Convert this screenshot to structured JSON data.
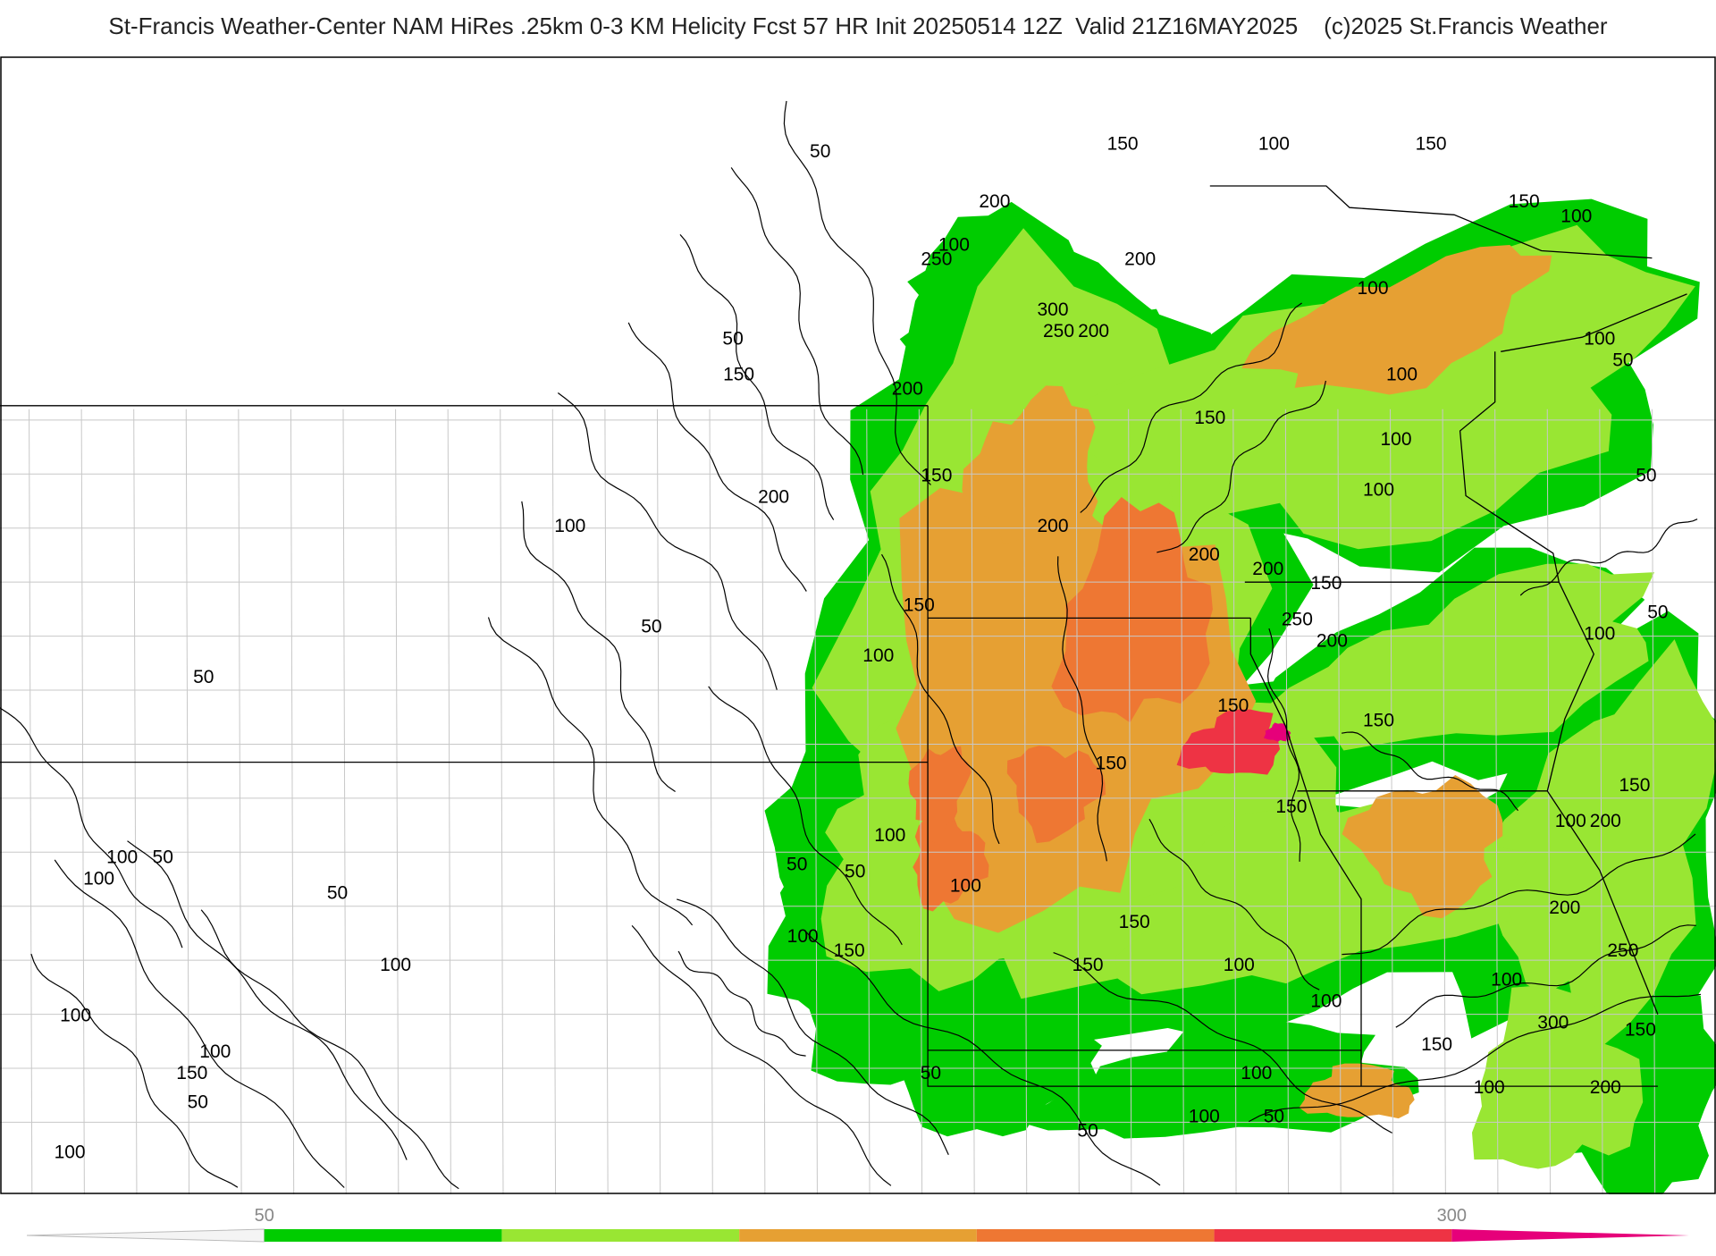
{
  "title": "St-Francis Weather-Center NAM HiRes .25km 0-3 KM Helicity Fcst 57 HR Init 20250514 12Z  Valid 21Z16MAY2025    (c)2025 St.Francis Weather",
  "colors": {
    "background": "#ffffff",
    "contour_line": "#000000",
    "state_border": "#000000",
    "county_border": "#c8c8c8",
    "scale": [
      "#ffffff",
      "#00cc00",
      "#99e633",
      "#e6a033",
      "#ee7733",
      "#ee3344",
      "#e6007a"
    ]
  },
  "legend": {
    "ticks": [
      {
        "label": "50",
        "value": 50
      },
      {
        "label": "300",
        "value": 300
      }
    ],
    "bins": [
      0,
      50,
      100,
      150,
      200,
      250,
      300,
      350
    ]
  },
  "contour_labels": [
    {
      "text": "50",
      "lon": -103.9,
      "lat": 49.4
    },
    {
      "text": "100",
      "lon": -96.1,
      "lat": 49.5
    },
    {
      "text": "150",
      "lon": -98.7,
      "lat": 49.5
    },
    {
      "text": "200",
      "lon": -100.9,
      "lat": 48.7
    },
    {
      "text": "150",
      "lon": -93.4,
      "lat": 49.5
    },
    {
      "text": "100",
      "lon": -101.6,
      "lat": 48.1
    },
    {
      "text": "250",
      "lon": -101.9,
      "lat": 47.9
    },
    {
      "text": "200",
      "lon": -98.4,
      "lat": 47.9
    },
    {
      "text": "300",
      "lon": -99.9,
      "lat": 47.2
    },
    {
      "text": "250",
      "lon": -99.8,
      "lat": 46.9
    },
    {
      "text": "200",
      "lon": -99.2,
      "lat": 46.9
    },
    {
      "text": "150",
      "lon": -91.8,
      "lat": 48.7
    },
    {
      "text": "100",
      "lon": -90.9,
      "lat": 48.5
    },
    {
      "text": "100",
      "lon": -94.4,
      "lat": 47.5
    },
    {
      "text": "50",
      "lon": -105.4,
      "lat": 46.8
    },
    {
      "text": "150",
      "lon": -105.3,
      "lat": 46.3
    },
    {
      "text": "200",
      "lon": -102.4,
      "lat": 46.1
    },
    {
      "text": "100",
      "lon": -90.5,
      "lat": 46.8
    },
    {
      "text": "50",
      "lon": -90.1,
      "lat": 46.5
    },
    {
      "text": "100",
      "lon": -93.9,
      "lat": 46.3
    },
    {
      "text": "150",
      "lon": -97.2,
      "lat": 45.7
    },
    {
      "text": "100",
      "lon": -94.0,
      "lat": 45.4
    },
    {
      "text": "150",
      "lon": -101.9,
      "lat": 44.9
    },
    {
      "text": "200",
      "lon": -104.7,
      "lat": 44.6
    },
    {
      "text": "100",
      "lon": -94.3,
      "lat": 44.7
    },
    {
      "text": "50",
      "lon": -89.7,
      "lat": 44.9
    },
    {
      "text": "100",
      "lon": -108.2,
      "lat": 44.2
    },
    {
      "text": "200",
      "lon": -99.9,
      "lat": 44.2
    },
    {
      "text": "200",
      "lon": -97.3,
      "lat": 43.8
    },
    {
      "text": "200",
      "lon": -96.2,
      "lat": 43.6
    },
    {
      "text": "150",
      "lon": -95.2,
      "lat": 43.4
    },
    {
      "text": "150",
      "lon": -102.2,
      "lat": 43.1
    },
    {
      "text": "50",
      "lon": -89.5,
      "lat": 43.0
    },
    {
      "text": "250",
      "lon": -95.7,
      "lat": 42.9
    },
    {
      "text": "200",
      "lon": -95.1,
      "lat": 42.6
    },
    {
      "text": "100",
      "lon": -90.5,
      "lat": 42.7
    },
    {
      "text": "50",
      "lon": -106.8,
      "lat": 42.8
    },
    {
      "text": "100",
      "lon": -102.9,
      "lat": 42.4
    },
    {
      "text": "50",
      "lon": -114.5,
      "lat": 42.1
    },
    {
      "text": "150",
      "lon": -96.8,
      "lat": 41.7
    },
    {
      "text": "150",
      "lon": -94.3,
      "lat": 41.5
    },
    {
      "text": "150",
      "lon": -98.9,
      "lat": 40.9
    },
    {
      "text": "150",
      "lon": -89.9,
      "lat": 40.6
    },
    {
      "text": "150",
      "lon": -95.8,
      "lat": 40.3
    },
    {
      "text": "100",
      "lon": -91.0,
      "lat": 40.1
    },
    {
      "text": "200",
      "lon": -90.4,
      "lat": 40.1
    },
    {
      "text": "100",
      "lon": -102.7,
      "lat": 39.9
    },
    {
      "text": "100",
      "lon": -115.9,
      "lat": 39.6
    },
    {
      "text": "50",
      "lon": -115.2,
      "lat": 39.6
    },
    {
      "text": "100",
      "lon": -116.3,
      "lat": 39.3
    },
    {
      "text": "50",
      "lon": -104.3,
      "lat": 39.5
    },
    {
      "text": "50",
      "lon": -103.3,
      "lat": 39.4
    },
    {
      "text": "100",
      "lon": -101.4,
      "lat": 39.2
    },
    {
      "text": "50",
      "lon": -112.2,
      "lat": 39.1
    },
    {
      "text": "200",
      "lon": -91.1,
      "lat": 38.9
    },
    {
      "text": "150",
      "lon": -98.5,
      "lat": 38.7
    },
    {
      "text": "100",
      "lon": -104.2,
      "lat": 38.5
    },
    {
      "text": "150",
      "lon": -103.4,
      "lat": 38.3
    },
    {
      "text": "250",
      "lon": -90.1,
      "lat": 38.3
    },
    {
      "text": "100",
      "lon": -96.7,
      "lat": 38.1
    },
    {
      "text": "100",
      "lon": -111.2,
      "lat": 38.1
    },
    {
      "text": "150",
      "lon": -99.3,
      "lat": 38.1
    },
    {
      "text": "100",
      "lon": -92.1,
      "lat": 37.9
    },
    {
      "text": "100",
      "lon": -95.2,
      "lat": 37.6
    },
    {
      "text": "100",
      "lon": -116.7,
      "lat": 37.4
    },
    {
      "text": "300",
      "lon": -91.3,
      "lat": 37.3
    },
    {
      "text": "150",
      "lon": -89.8,
      "lat": 37.2
    },
    {
      "text": "150",
      "lon": -93.3,
      "lat": 37.0
    },
    {
      "text": "100",
      "lon": -114.3,
      "lat": 36.9
    },
    {
      "text": "150",
      "lon": -114.7,
      "lat": 36.6
    },
    {
      "text": "50",
      "lon": -102.0,
      "lat": 36.6
    },
    {
      "text": "100",
      "lon": -96.4,
      "lat": 36.6
    },
    {
      "text": "100",
      "lon": -92.4,
      "lat": 36.4
    },
    {
      "text": "200",
      "lon": -90.4,
      "lat": 36.4
    },
    {
      "text": "50",
      "lon": -114.6,
      "lat": 36.2
    },
    {
      "text": "100",
      "lon": -97.3,
      "lat": 36.0
    },
    {
      "text": "50",
      "lon": -96.1,
      "lat": 36.0
    },
    {
      "text": "50",
      "lon": -99.3,
      "lat": 35.8
    },
    {
      "text": "100",
      "lon": -116.8,
      "lat": 35.5
    }
  ]
}
